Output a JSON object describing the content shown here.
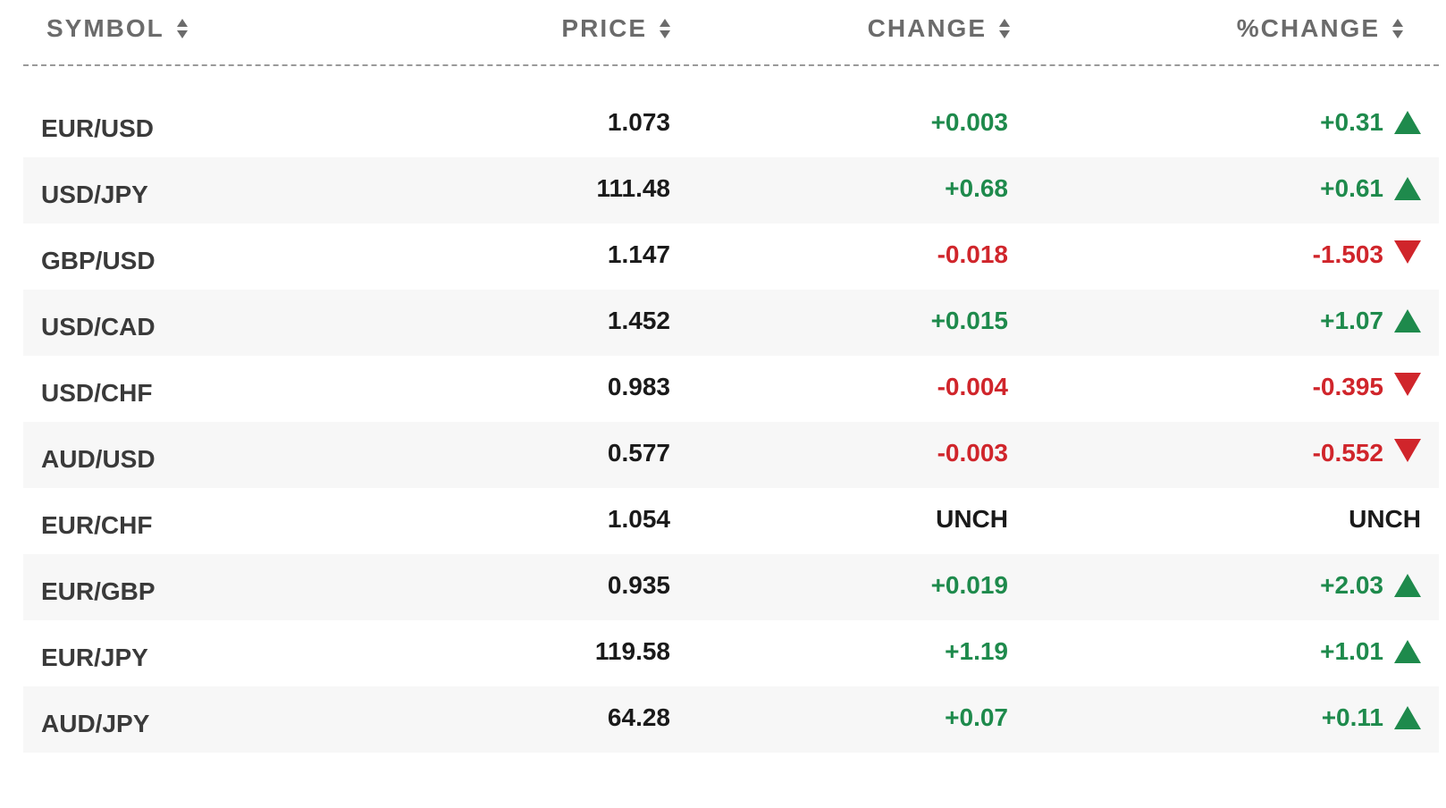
{
  "header": {
    "symbol": "SYMBOL",
    "price": "PRICE",
    "change": "CHANGE",
    "pct_change": "%CHANGE"
  },
  "colors": {
    "positive": "#1e8a4c",
    "negative": "#d0252b",
    "neutral": "#1a1a1a"
  },
  "rows": [
    {
      "symbol": "EUR/USD",
      "price": "1.073",
      "change": "+0.003",
      "pct": "+0.31",
      "dir": "up"
    },
    {
      "symbol": "USD/JPY",
      "price": "111.48",
      "change": "+0.68",
      "pct": "+0.61",
      "dir": "up"
    },
    {
      "symbol": "GBP/USD",
      "price": "1.147",
      "change": "-0.018",
      "pct": "-1.503",
      "dir": "down"
    },
    {
      "symbol": "USD/CAD",
      "price": "1.452",
      "change": "+0.015",
      "pct": "+1.07",
      "dir": "up"
    },
    {
      "symbol": "USD/CHF",
      "price": "0.983",
      "change": "-0.004",
      "pct": "-0.395",
      "dir": "down"
    },
    {
      "symbol": "AUD/USD",
      "price": "0.577",
      "change": "-0.003",
      "pct": "-0.552",
      "dir": "down"
    },
    {
      "symbol": "EUR/CHF",
      "price": "1.054",
      "change": "UNCH",
      "pct": "UNCH",
      "dir": "none"
    },
    {
      "symbol": "EUR/GBP",
      "price": "0.935",
      "change": "+0.019",
      "pct": "+2.03",
      "dir": "up"
    },
    {
      "symbol": "EUR/JPY",
      "price": "119.58",
      "change": "+1.19",
      "pct": "+1.01",
      "dir": "up"
    },
    {
      "symbol": "AUD/JPY",
      "price": "64.28",
      "change": "+0.07",
      "pct": "+0.11",
      "dir": "up"
    }
  ]
}
